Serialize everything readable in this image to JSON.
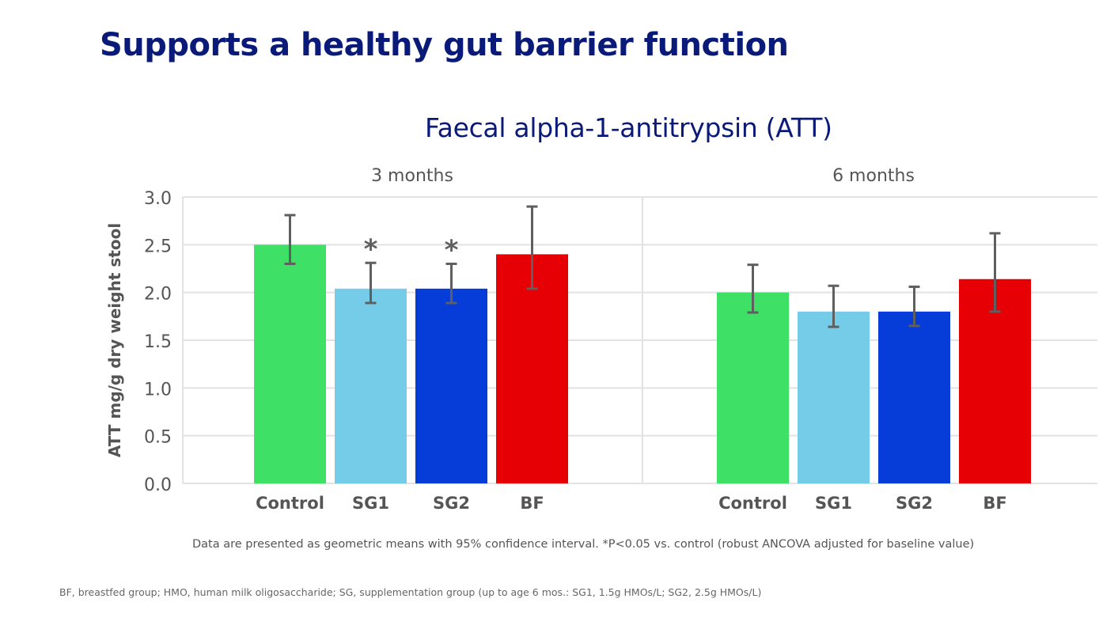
{
  "header": {
    "title": "Supports a healthy gut barrier function"
  },
  "chart_data": {
    "type": "bar",
    "title": "Faecal alpha-1-antitrypsin (ATT)",
    "xlabel": "",
    "ylabel": "ATT mg/g dry weight stool",
    "ylim": [
      0,
      3.0
    ],
    "yticks": [
      "0.0",
      "0.5",
      "1.0",
      "1.5",
      "2.0",
      "2.5",
      "3.0"
    ],
    "grid": true,
    "error_bars": "95% confidence interval",
    "categories": [
      "Control",
      "SG1",
      "SG2",
      "BF"
    ],
    "colors": {
      "Control": "#3fe066",
      "SG1": "#74cce9",
      "SG2": "#063cd8",
      "BF": "#e60005"
    },
    "panels": [
      {
        "label": "3 months",
        "values": [
          2.5,
          2.04,
          2.04,
          2.4
        ],
        "ci_low": [
          2.3,
          1.89,
          1.89,
          2.04
        ],
        "ci_high": [
          2.81,
          2.31,
          2.3,
          2.9
        ],
        "significance": [
          "",
          "*",
          "*",
          ""
        ]
      },
      {
        "label": "6 months",
        "values": [
          2.0,
          1.8,
          1.8,
          2.14
        ],
        "ci_low": [
          1.79,
          1.64,
          1.65,
          1.8
        ],
        "ci_high": [
          2.29,
          2.07,
          2.06,
          2.62
        ],
        "significance": [
          "",
          "",
          "",
          ""
        ]
      }
    ]
  },
  "notes": {
    "statistics": "Data are presented as geometric means with 95% confidence interval. *P<0.05 vs. control (robust ANCOVA adjusted for baseline value)",
    "abbreviations": "BF, breastfed group; HMO, human milk oligosaccharide; SG, supplementation group (up to age 6 mos.: SG1, 1.5g HMOs/L; SG2, 2.5g HMOs/L)"
  }
}
